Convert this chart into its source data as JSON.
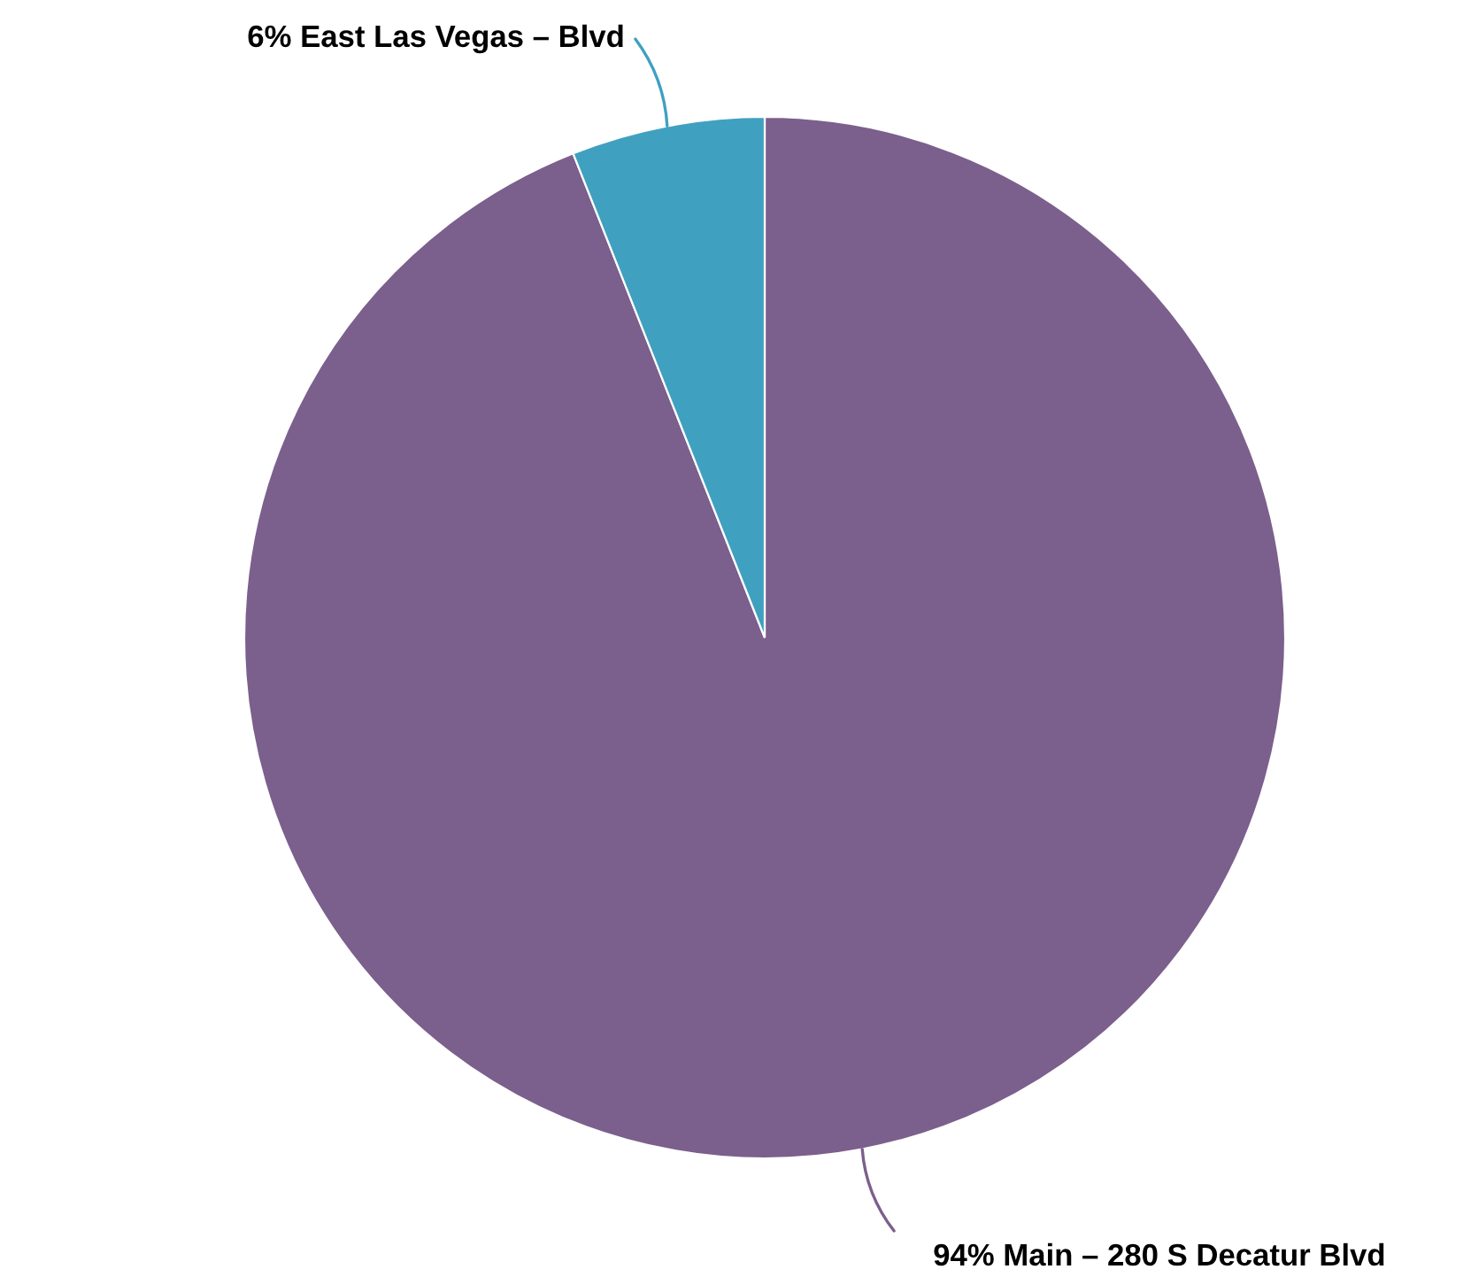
{
  "chart_data": {
    "type": "pie",
    "categories": [
      "Main – 280 S Decatur Blvd",
      "East Las Vegas – Blvd"
    ],
    "values": [
      94,
      6
    ],
    "value_labels": [
      "94%",
      "6%"
    ],
    "colors": [
      "#7b5f8c",
      "#40a0c0"
    ]
  }
}
